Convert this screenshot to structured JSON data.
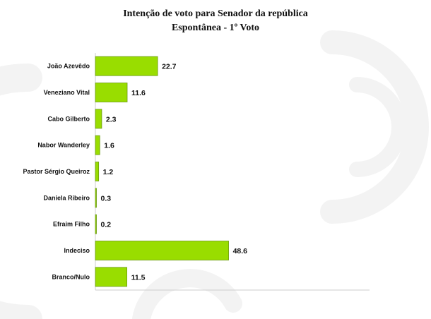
{
  "chart_data": {
    "type": "bar",
    "orientation": "horizontal",
    "title": "Intenção de voto para Senador da república",
    "subtitle": "Espontânea - 1º Voto",
    "categories": [
      "João Azevêdo",
      "Veneziano Vital",
      "Cabo Gilberto",
      "Nabor Wanderley",
      "Pastor Sérgio Queiroz",
      "Daniela Ribeiro",
      "Efraim Filho",
      "Indeciso",
      "Branco/Nulo"
    ],
    "values": [
      22.7,
      11.6,
      2.3,
      1.6,
      1.2,
      0.3,
      0.2,
      48.6,
      11.5
    ],
    "value_labels": [
      "22.7",
      "11.6",
      "2.3",
      "1.6",
      "1.2",
      "0.3",
      "0.2",
      "48.6",
      "11.5"
    ],
    "xlim": [
      0,
      100
    ],
    "grid": false,
    "legend": "none",
    "colors": {
      "bar_fill": "#99dd00",
      "bar_stroke": "#6a9a10",
      "axis": "#cccccc"
    }
  }
}
